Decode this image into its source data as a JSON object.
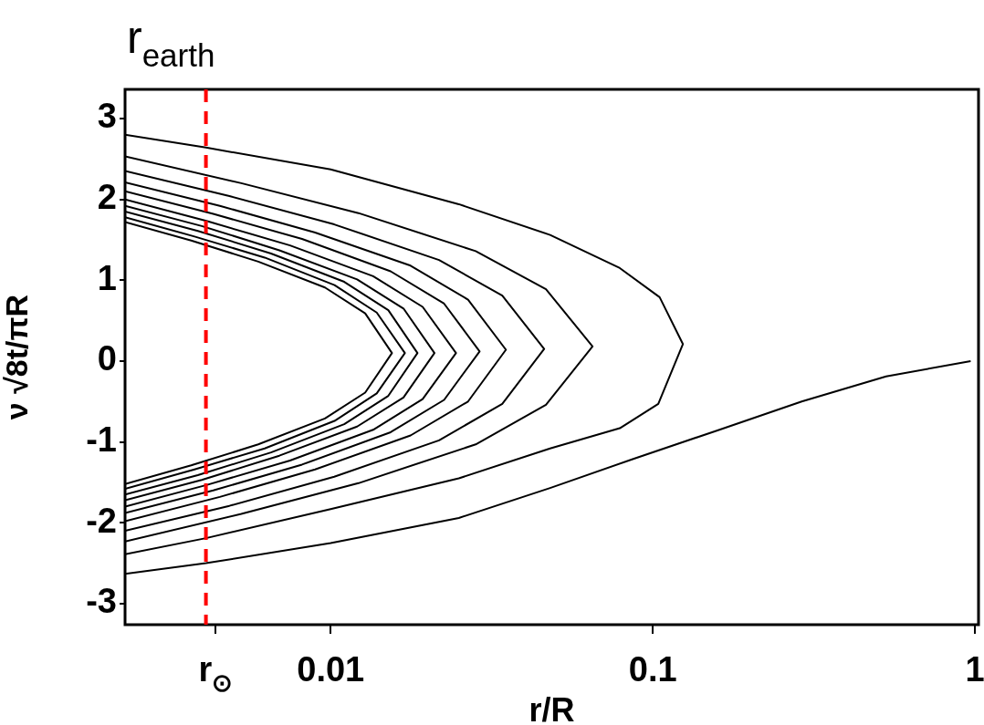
{
  "chart_data": {
    "type": "line",
    "xlabel": "r/R",
    "ylabel": "ν √8t/πR",
    "log": "x",
    "grid": false,
    "legend": false,
    "marker": "none",
    "xlim": [
      0.0023,
      1.026
    ],
    "ylim": [
      -3.26,
      3.36
    ],
    "xticks": [
      {
        "value": 0.0044,
        "label": "r$_{⊙}$"
      },
      0.01,
      0.1,
      1
    ],
    "yticks": [
      -3,
      -2,
      -1,
      0,
      1,
      2,
      3
    ],
    "ref_lines": [
      {
        "axis": "x",
        "value": 0.0041,
        "label": "r$_{earth}$",
        "color": "#ff0000",
        "line_style": "dashed"
      }
    ],
    "series": [
      {
        "color": "#000000",
        "x": [
          0.0023,
          0.0041,
          0.01,
          0.025,
          0.048,
          0.079,
          0.105,
          0.124,
          0.104,
          0.079,
          0.048,
          0.025,
          0.01,
          0.0041,
          0.0023
        ],
        "values": [
          2.8,
          2.64,
          2.37,
          1.94,
          1.56,
          1.15,
          0.79,
          0.21,
          -0.53,
          -0.83,
          -1.08,
          -1.45,
          -1.83,
          -2.19,
          -2.39
        ]
      },
      {
        "color": "#000000",
        "x": [
          0.0023,
          0.00528,
          0.0122,
          0.0282,
          0.0466,
          0.065,
          0.0466,
          0.0282,
          0.0122,
          0.00528,
          0.0023
        ],
        "values": [
          2.53,
          2.2,
          1.83,
          1.36,
          0.89,
          0.18,
          -0.54,
          -1.03,
          -1.51,
          -1.89,
          -2.23
        ]
      },
      {
        "color": "#000000",
        "x": [
          0.0023,
          0.00485,
          0.01026,
          0.0217,
          0.0341,
          0.046,
          0.0341,
          0.0217,
          0.01026,
          0.00485,
          0.0023
        ],
        "values": [
          2.35,
          2.04,
          1.69,
          1.25,
          0.81,
          0.15,
          -0.53,
          -0.98,
          -1.43,
          -1.79,
          -2.1
        ]
      },
      {
        "color": "#000000",
        "x": [
          0.0023,
          0.00453,
          0.00895,
          0.0177,
          0.0267,
          0.035,
          0.0267,
          0.0177,
          0.00895,
          0.00453,
          0.0023
        ],
        "values": [
          2.21,
          1.92,
          1.59,
          1.18,
          0.76,
          0.14,
          -0.5,
          -0.92,
          -1.34,
          -1.68,
          -1.98
        ]
      },
      {
        "color": "#000000",
        "x": [
          0.0023,
          0.00432,
          0.00815,
          0.01535,
          0.0225,
          0.029,
          0.0225,
          0.01535,
          0.00815,
          0.00432,
          0.0023
        ],
        "values": [
          2.1,
          1.82,
          1.51,
          1.11,
          0.71,
          0.12,
          -0.48,
          -0.88,
          -1.28,
          -1.6,
          -1.88
        ]
      },
      {
        "color": "#000000",
        "x": [
          0.0023,
          0.00414,
          0.00748,
          0.01355,
          0.0193,
          0.0245,
          0.0193,
          0.01355,
          0.00748,
          0.00414,
          0.0023
        ],
        "values": [
          2.0,
          1.73,
          1.43,
          1.05,
          0.67,
          0.1,
          -0.47,
          -0.85,
          -1.23,
          -1.53,
          -1.8
        ]
      },
      {
        "color": "#000000",
        "x": [
          0.0023,
          0.00398,
          0.00693,
          0.01208,
          0.01683,
          0.021,
          0.01683,
          0.01208,
          0.00693,
          0.00398,
          0.0023
        ],
        "values": [
          1.92,
          1.67,
          1.37,
          1.01,
          0.65,
          0.1,
          -0.45,
          -0.81,
          -1.17,
          -1.47,
          -1.72
        ]
      },
      {
        "color": "#000000",
        "x": [
          0.0023,
          0.00387,
          0.00653,
          0.01102,
          0.0151,
          0.0186,
          0.0151,
          0.01102,
          0.00653,
          0.00387,
          0.0023
        ],
        "values": [
          1.85,
          1.61,
          1.33,
          0.98,
          0.63,
          0.1,
          -0.43,
          -0.78,
          -1.13,
          -1.41,
          -1.65
        ]
      },
      {
        "color": "#000000",
        "x": [
          0.0023,
          0.00378,
          0.00624,
          0.01028,
          0.0139,
          0.017,
          0.0139,
          0.01028,
          0.00624,
          0.00378,
          0.0023
        ],
        "values": [
          1.78,
          1.54,
          1.28,
          0.94,
          0.6,
          0.1,
          -0.4,
          -0.74,
          -1.08,
          -1.34,
          -1.58
        ]
      },
      {
        "color": "#000000",
        "x": [
          0.0023,
          0.00369,
          0.00596,
          0.0096,
          0.0128,
          0.0155,
          0.0128,
          0.0096,
          0.00596,
          0.00369,
          0.0023
        ],
        "values": [
          1.72,
          1.49,
          1.23,
          0.91,
          0.59,
          0.1,
          -0.39,
          -0.71,
          -1.03,
          -1.29,
          -1.52
        ]
      },
      {
        "color": "#000000",
        "x": [
          0.0023,
          0.0041,
          0.01,
          0.025,
          0.048,
          0.087,
          0.158,
          0.29,
          0.53,
          0.97
        ],
        "values": [
          -2.63,
          -2.5,
          -2.25,
          -1.94,
          -1.57,
          -1.21,
          -0.86,
          -0.5,
          -0.19,
          0.0
        ]
      }
    ]
  }
}
